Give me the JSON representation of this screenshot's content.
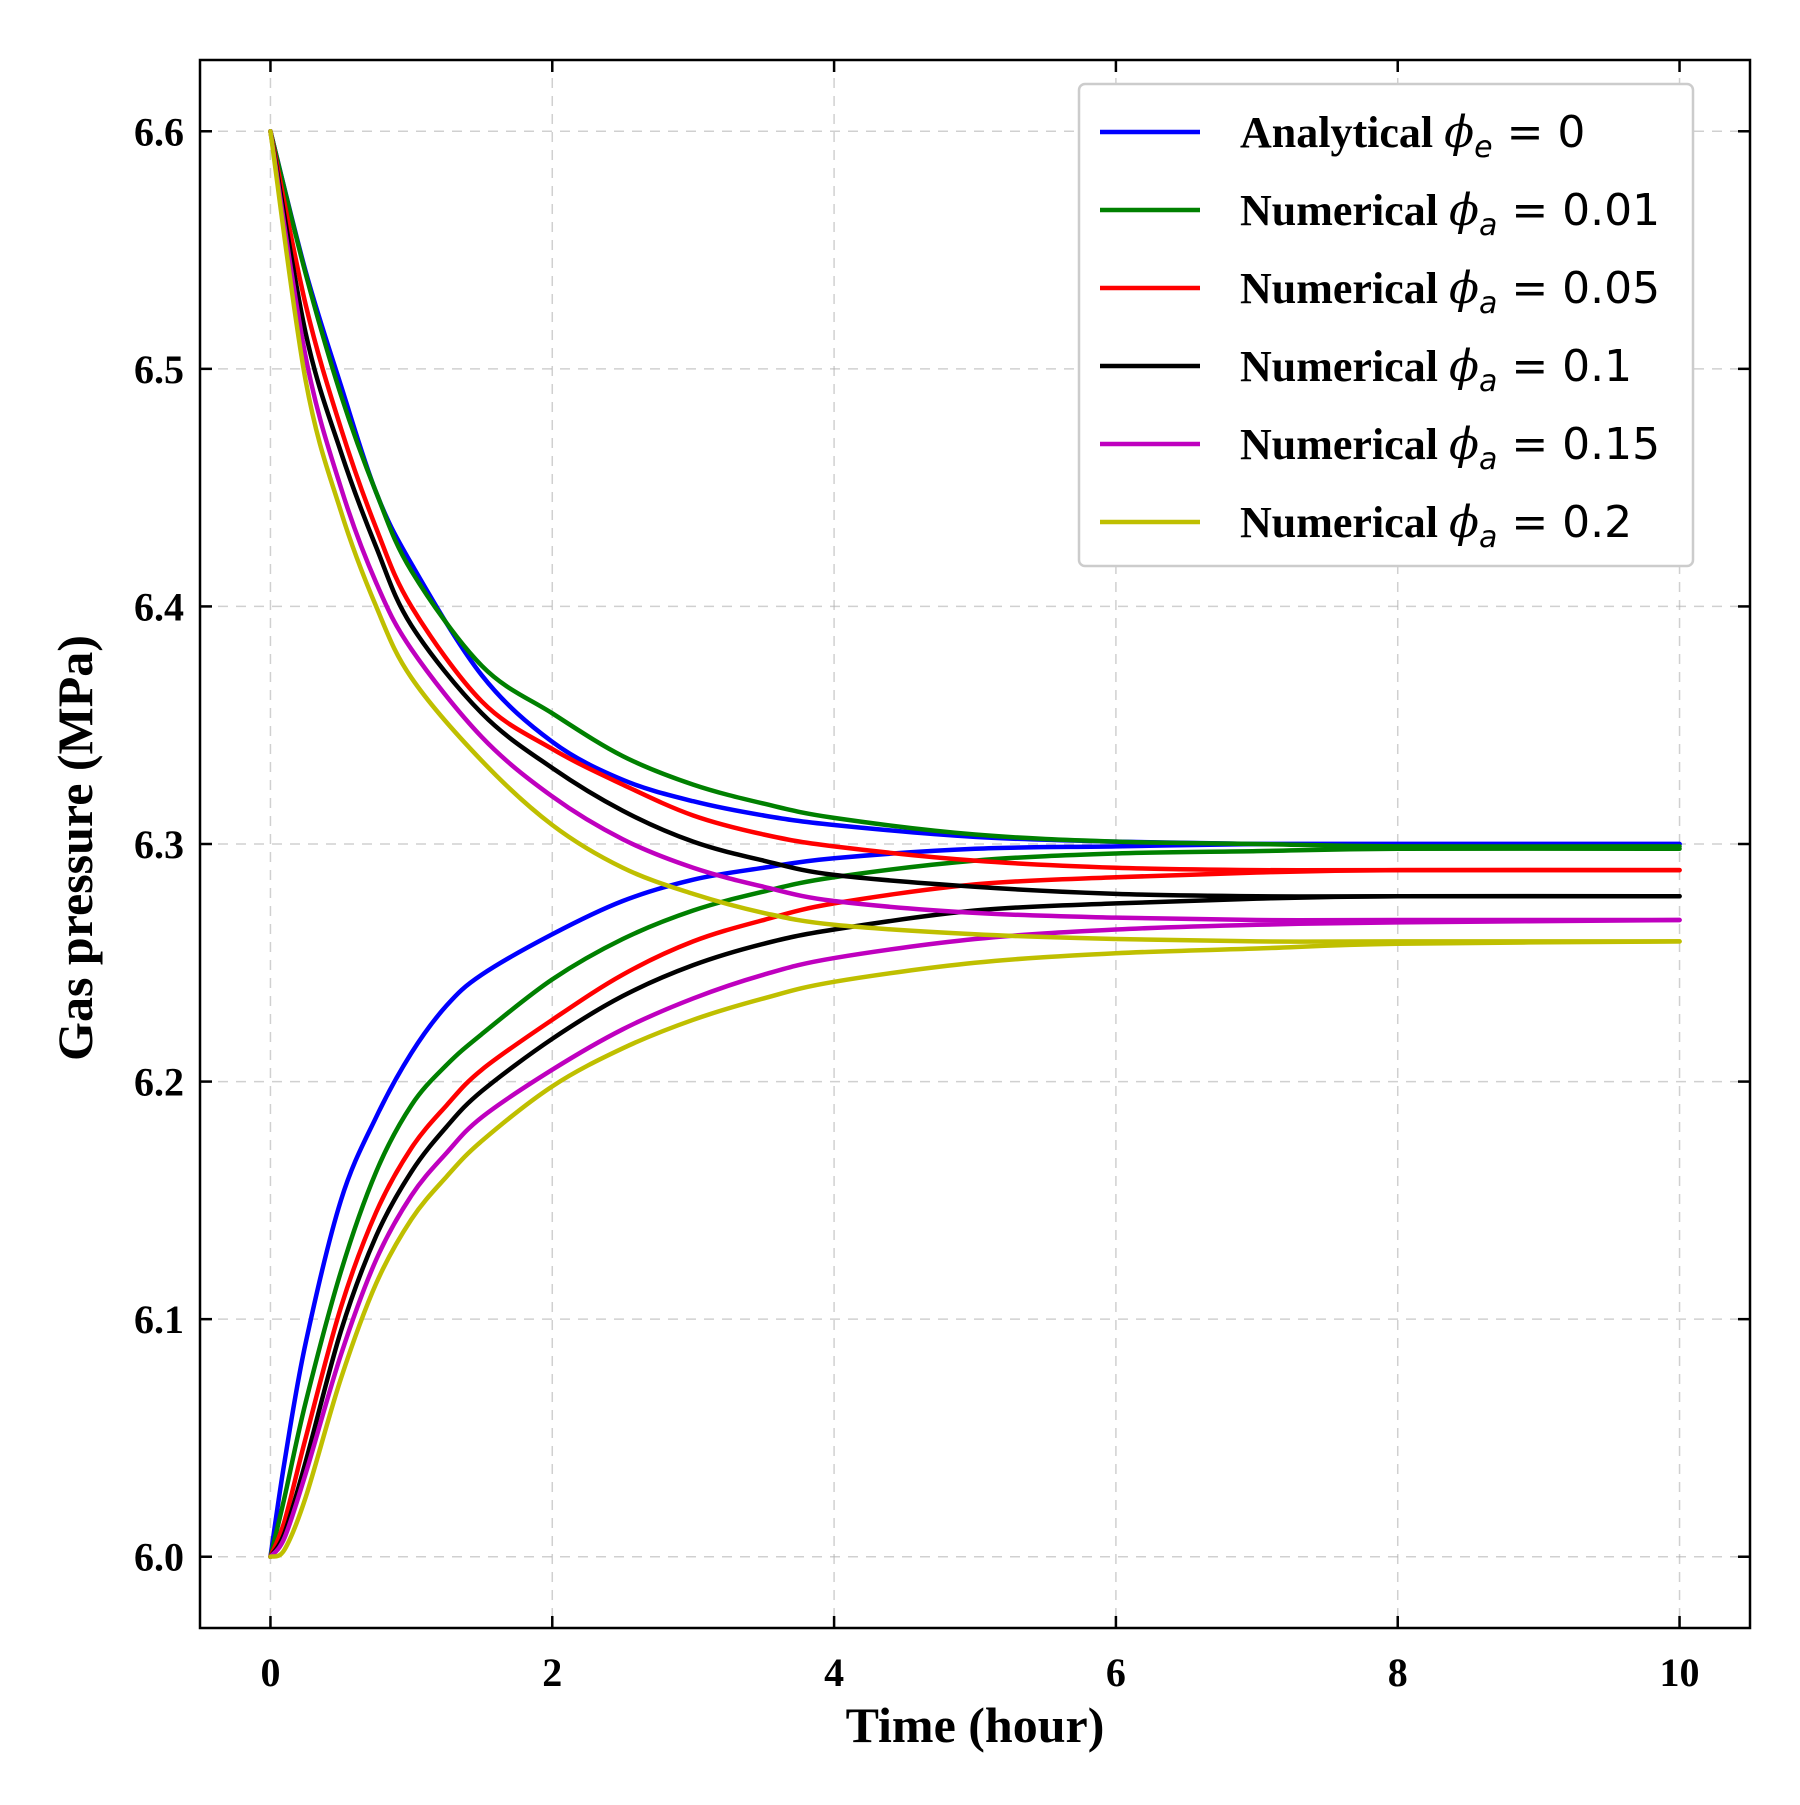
{
  "chart_data": {
    "type": "line",
    "xlabel": "Time (hour)",
    "ylabel": "Gas pressure (MPa)",
    "xlim": [
      -0.5,
      10.5
    ],
    "ylim": [
      5.97,
      6.63
    ],
    "xticks": [
      0,
      2,
      4,
      6,
      8,
      10
    ],
    "xtick_labels": [
      "0",
      "2",
      "4",
      "6",
      "8",
      "10"
    ],
    "yticks": [
      6.0,
      6.1,
      6.2,
      6.3,
      6.4,
      6.5,
      6.6
    ],
    "ytick_labels": [
      "6.0",
      "6.1",
      "6.2",
      "6.3",
      "6.4",
      "6.5",
      "6.6"
    ],
    "grid": true,
    "legend_position": "top-right",
    "series": [
      {
        "name": "Analytical",
        "symbol": "ϕ",
        "subscript": "e",
        "value_label": "0",
        "color": "#0000ff",
        "branches": [
          {
            "x": [
              0,
              0.25,
              0.5,
              0.75,
              1,
              1.5,
              2,
              2.5,
              3,
              3.5,
              4,
              5,
              6,
              7,
              8,
              10
            ],
            "y": [
              6.6,
              6.541,
              6.493,
              6.448,
              6.418,
              6.371,
              6.343,
              6.327,
              6.318,
              6.312,
              6.308,
              6.303,
              6.301,
              6.3,
              6.3,
              6.3
            ]
          },
          {
            "x": [
              0,
              0.1,
              0.25,
              0.5,
              0.75,
              1,
              1.25,
              1.5,
              2,
              2.5,
              3,
              3.5,
              4,
              5,
              6,
              7,
              8,
              10
            ],
            "y": [
              6.0,
              6.04,
              6.09,
              6.15,
              6.185,
              6.212,
              6.232,
              6.245,
              6.262,
              6.276,
              6.285,
              6.29,
              6.294,
              6.298,
              6.299,
              6.3,
              6.3,
              6.3
            ]
          }
        ]
      },
      {
        "name": "Numerical",
        "symbol": "ϕ",
        "subscript": "a",
        "value_label": "0.01",
        "color": "#008000",
        "branches": [
          {
            "x": [
              0,
              0.25,
              0.5,
              0.75,
              1,
              1.5,
              2,
              2.5,
              3,
              3.5,
              4,
              5,
              6,
              7,
              8,
              10
            ],
            "y": [
              6.6,
              6.54,
              6.489,
              6.448,
              6.415,
              6.375,
              6.355,
              6.337,
              6.325,
              6.317,
              6.311,
              6.304,
              6.301,
              6.3,
              6.299,
              6.299
            ]
          },
          {
            "x": [
              0,
              0.1,
              0.25,
              0.5,
              0.75,
              1,
              1.25,
              1.5,
              2,
              2.5,
              3,
              3.5,
              4,
              5,
              6,
              7,
              8,
              10
            ],
            "y": [
              6.0,
              6.025,
              6.065,
              6.12,
              6.162,
              6.19,
              6.207,
              6.22,
              6.243,
              6.26,
              6.272,
              6.28,
              6.286,
              6.293,
              6.296,
              6.297,
              6.298,
              6.298
            ]
          }
        ]
      },
      {
        "name": "Numerical",
        "symbol": "ϕ",
        "subscript": "a",
        "value_label": "0.05",
        "color": "#ff0000",
        "branches": [
          {
            "x": [
              0,
              0.25,
              0.5,
              0.75,
              1,
              1.5,
              2,
              2.5,
              3,
              3.5,
              4,
              5,
              6,
              7,
              8,
              10
            ],
            "y": [
              6.6,
              6.527,
              6.475,
              6.433,
              6.4,
              6.36,
              6.34,
              6.325,
              6.312,
              6.304,
              6.299,
              6.293,
              6.29,
              6.289,
              6.289,
              6.289
            ]
          },
          {
            "x": [
              0,
              0.1,
              0.25,
              0.5,
              0.75,
              1,
              1.25,
              1.5,
              2,
              2.5,
              3,
              3.5,
              4,
              5,
              6,
              7,
              8,
              10
            ],
            "y": [
              6.0,
              6.015,
              6.05,
              6.105,
              6.145,
              6.172,
              6.19,
              6.205,
              6.226,
              6.245,
              6.259,
              6.268,
              6.275,
              6.283,
              6.286,
              6.288,
              6.289,
              6.289
            ]
          }
        ]
      },
      {
        "name": "Numerical",
        "symbol": "ϕ",
        "subscript": "a",
        "value_label": "0.1",
        "color": "#000000",
        "branches": [
          {
            "x": [
              0,
              0.25,
              0.5,
              0.75,
              1,
              1.5,
              2,
              2.5,
              3,
              3.5,
              4,
              5,
              6,
              7,
              8,
              10
            ],
            "y": [
              6.6,
              6.515,
              6.465,
              6.425,
              6.392,
              6.355,
              6.332,
              6.314,
              6.301,
              6.293,
              6.287,
              6.282,
              6.279,
              6.278,
              6.278,
              6.278
            ]
          },
          {
            "x": [
              0,
              0.1,
              0.25,
              0.5,
              0.75,
              1,
              1.25,
              1.5,
              2,
              2.5,
              3,
              3.5,
              4,
              5,
              6,
              7,
              8,
              10
            ],
            "y": [
              6.0,
              6.01,
              6.04,
              6.095,
              6.135,
              6.162,
              6.181,
              6.196,
              6.218,
              6.236,
              6.249,
              6.258,
              6.264,
              6.272,
              6.275,
              6.277,
              6.278,
              6.278
            ]
          }
        ]
      },
      {
        "name": "Numerical",
        "symbol": "ϕ",
        "subscript": "a",
        "value_label": "0.15",
        "color": "#bf00bf",
        "branches": [
          {
            "x": [
              0,
              0.25,
              0.5,
              0.75,
              1,
              1.5,
              2,
              2.5,
              3,
              3.5,
              4,
              5,
              6,
              7,
              8,
              10
            ],
            "y": [
              6.6,
              6.505,
              6.45,
              6.41,
              6.382,
              6.345,
              6.32,
              6.302,
              6.29,
              6.282,
              6.276,
              6.271,
              6.269,
              6.268,
              6.268,
              6.268
            ]
          },
          {
            "x": [
              0,
              0.1,
              0.25,
              0.5,
              0.75,
              1,
              1.25,
              1.5,
              2,
              2.5,
              3,
              3.5,
              4,
              5,
              6,
              7,
              8,
              10
            ],
            "y": [
              6.0,
              6.008,
              6.035,
              6.085,
              6.125,
              6.152,
              6.17,
              6.185,
              6.205,
              6.222,
              6.235,
              6.245,
              6.252,
              6.26,
              6.264,
              6.266,
              6.267,
              6.268
            ]
          }
        ]
      },
      {
        "name": "Numerical",
        "symbol": "ϕ",
        "subscript": "a",
        "value_label": "0.2",
        "color": "#bfbf00",
        "branches": [
          {
            "x": [
              0,
              0.25,
              0.5,
              0.75,
              1,
              1.5,
              2,
              2.5,
              3,
              3.5,
              4,
              5,
              6,
              7,
              8,
              10
            ],
            "y": [
              6.6,
              6.495,
              6.44,
              6.4,
              6.37,
              6.335,
              6.308,
              6.29,
              6.279,
              6.271,
              6.266,
              6.262,
              6.26,
              6.259,
              6.259,
              6.259
            ]
          },
          {
            "x": [
              0,
              0.1,
              0.25,
              0.5,
              0.75,
              1,
              1.25,
              1.5,
              2,
              2.5,
              3,
              3.5,
              4,
              5,
              6,
              7,
              8,
              10
            ],
            "y": [
              6.0,
              6.003,
              6.025,
              6.075,
              6.115,
              6.142,
              6.16,
              6.175,
              6.198,
              6.214,
              6.226,
              6.235,
              6.242,
              6.25,
              6.254,
              6.256,
              6.258,
              6.259
            ]
          }
        ]
      }
    ]
  }
}
